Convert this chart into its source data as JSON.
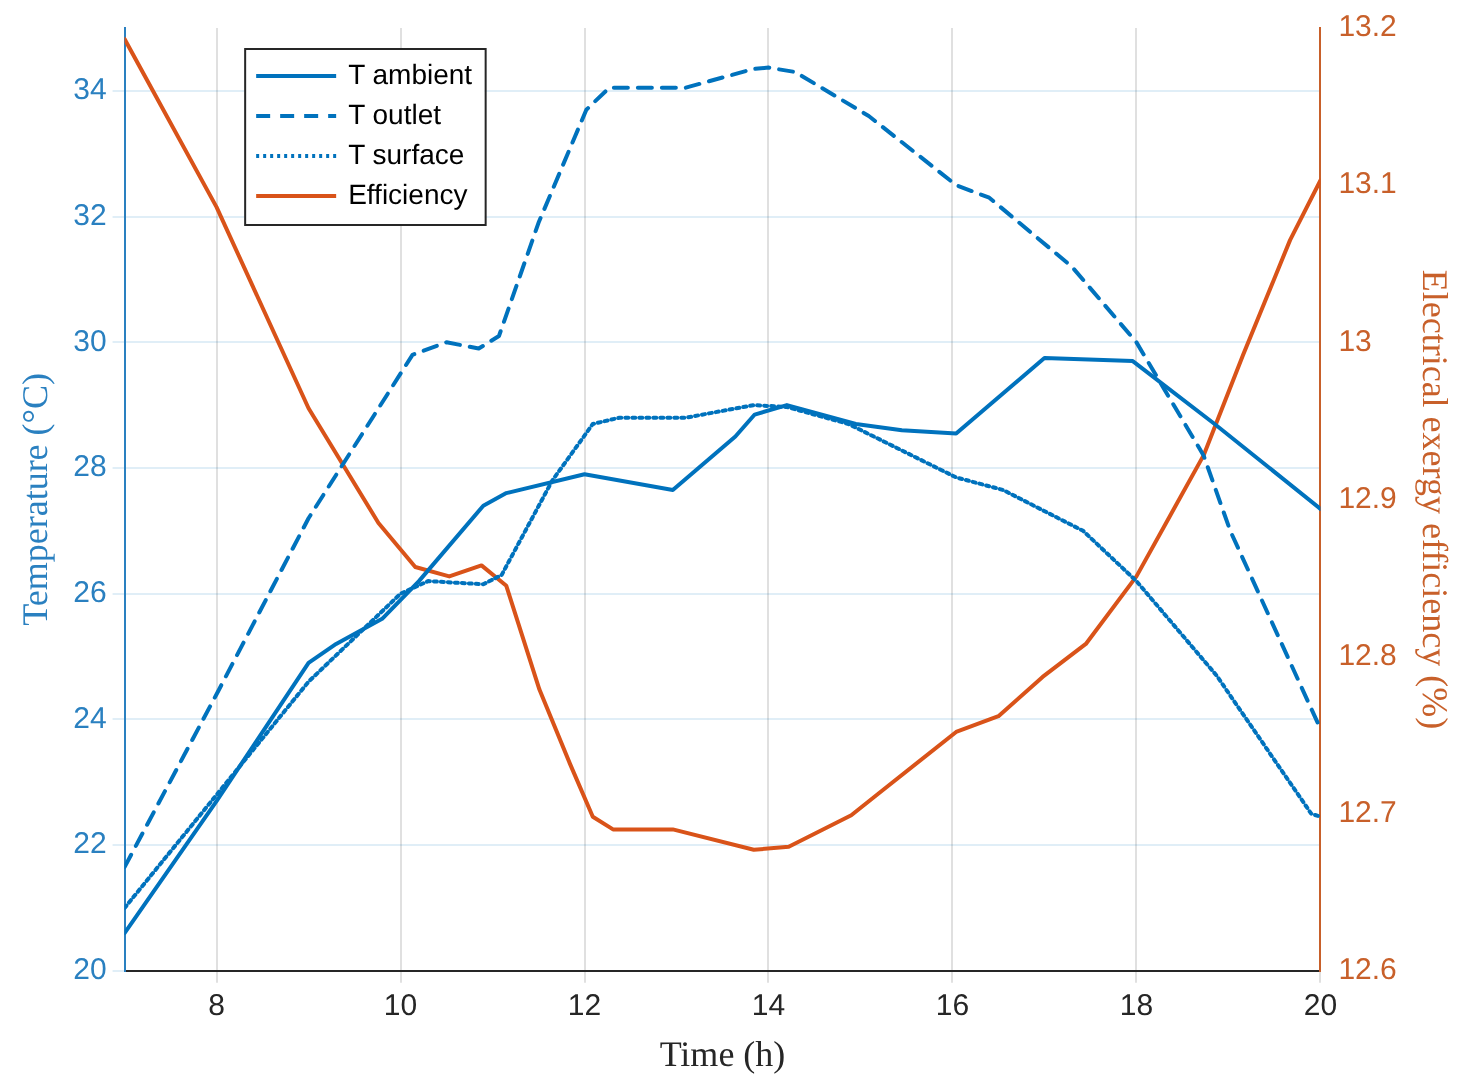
{
  "chart_data": {
    "type": "line",
    "xlabel": "Time (h)",
    "ylabel": "Temperature (°C)",
    "y2label": "Electrical exergy efficiency (%)",
    "xlim": [
      7,
      20
    ],
    "xticks": [
      8,
      10,
      12,
      14,
      16,
      18,
      20
    ],
    "ylim": [
      20,
      35
    ],
    "yticks": [
      20,
      22,
      24,
      26,
      28,
      30,
      32,
      34
    ],
    "y2lim": [
      12.6,
      13.2
    ],
    "y2ticks": [
      12.6,
      12.7,
      12.8,
      12.9,
      13,
      13.1,
      13.2
    ],
    "grid": true,
    "legend": "top left",
    "marker": "none",
    "series": [
      {
        "name": "T ambient",
        "color": "#0072bd",
        "line_style": "solid",
        "x": [
          7,
          8,
          9,
          9.3,
          9.8,
          10.2,
          10.9,
          11.15,
          12,
          12.96,
          13.64,
          13.85,
          14.2,
          14.95,
          15.45,
          16.04,
          17,
          17.96,
          18.85,
          20
        ],
        "values": [
          20.6,
          22.7,
          24.9,
          25.2,
          25.6,
          26.2,
          27.4,
          27.6,
          27.9,
          27.65,
          28.5,
          28.85,
          29,
          28.7,
          28.6,
          28.55,
          29.75,
          29.7,
          28.7,
          27.35
        ]
      },
      {
        "name": "T outlet",
        "color": "#0072bd",
        "line_style": "dashed",
        "x": [
          7,
          8,
          9,
          10.13,
          10.5,
          10.85,
          11.07,
          11.5,
          12.02,
          12.27,
          13.1,
          13.84,
          14,
          14.29,
          15.09,
          16.04,
          16.4,
          17.3,
          18,
          18.73,
          19.02,
          20
        ],
        "values": [
          21.65,
          24.4,
          27.2,
          29.8,
          30,
          29.9,
          30.1,
          31.9,
          33.7,
          34.05,
          34.05,
          34.35,
          34.37,
          34.3,
          33.6,
          32.5,
          32.3,
          31.2,
          30,
          28.2,
          27,
          23.85
        ]
      },
      {
        "name": "T surface",
        "color": "#0072bd",
        "line_style": "dotted",
        "x": [
          7,
          8,
          9,
          9.5,
          10,
          10.3,
          10.9,
          11.1,
          11.65,
          12.09,
          12.38,
          13.1,
          13.84,
          14.2,
          14.87,
          16.04,
          16.55,
          17.42,
          18,
          18.87,
          19.9,
          20
        ],
        "values": [
          21,
          22.8,
          24.6,
          25.3,
          26,
          26.2,
          26.15,
          26.3,
          27.8,
          28.7,
          28.8,
          28.8,
          29,
          28.97,
          28.7,
          27.85,
          27.65,
          27,
          26.2,
          24.7,
          22.5,
          22.45
        ]
      },
      {
        "name": "Efficiency",
        "color": "#d95319",
        "line_style": "solid",
        "axis": "y2",
        "x": [
          7,
          8,
          9,
          9.76,
          10.16,
          10.53,
          10.88,
          11.15,
          11.51,
          11.84,
          12.09,
          12.31,
          12.96,
          13.84,
          14.22,
          14.9,
          15.2,
          16.04,
          16.5,
          16.98,
          17.45,
          18,
          18.36,
          18.73,
          19.16,
          19.67,
          20
        ],
        "values": [
          13.193,
          13.086,
          12.958,
          12.885,
          12.857,
          12.851,
          12.858,
          12.845,
          12.779,
          12.732,
          12.698,
          12.69,
          12.69,
          12.677,
          12.679,
          12.699,
          12.713,
          12.752,
          12.762,
          12.787,
          12.808,
          12.851,
          12.889,
          12.928,
          12.992,
          13.065,
          13.103
        ]
      }
    ]
  }
}
